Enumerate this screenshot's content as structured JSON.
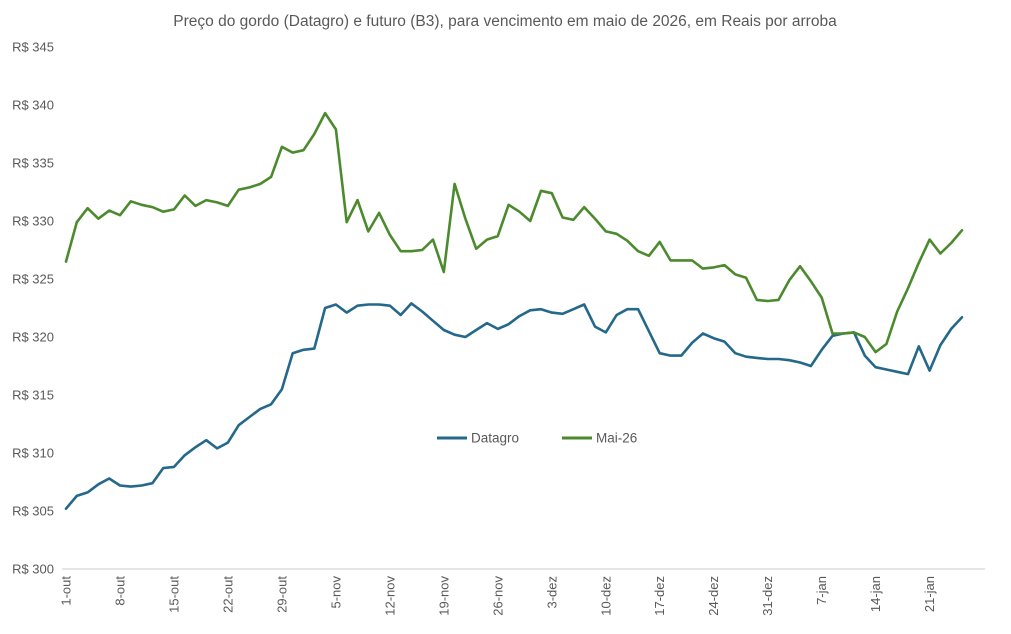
{
  "chart_data": {
    "type": "line",
    "title": "Preço do gordo (Datagro) e futuro (B3), para vencimento em maio de 2026, em Reais por arroba",
    "xlabel": "",
    "ylabel": "",
    "grid": false,
    "legend_position": "center-bottom",
    "text_color": "#595959",
    "axis_line_color": "#d6d6d6",
    "y_axis": {
      "min": 300,
      "max": 345,
      "step": 5,
      "prefix": "R$ "
    },
    "y_tick_labels": [
      "R$ 345",
      "R$ 340",
      "R$ 335",
      "R$ 330",
      "R$ 325",
      "R$ 320",
      "R$ 315",
      "R$ 310",
      "R$ 305",
      "R$ 300"
    ],
    "x_tick_labels": [
      "1-out",
      "8-out",
      "15-out",
      "22-out",
      "29-out",
      "5-nov",
      "12-nov",
      "19-nov",
      "26-nov",
      "3-dez",
      "10-dez",
      "17-dez",
      "24-dez",
      "31-dez",
      "7-jan",
      "14-jan",
      "21-jan"
    ],
    "x_tick_every": 5,
    "points_per_series": 84,
    "series": [
      {
        "name": "Datagro",
        "color": "#24688A",
        "values": [
          305.2,
          306.3,
          306.6,
          307.3,
          307.8,
          307.2,
          307.1,
          307.2,
          307.4,
          308.7,
          308.8,
          309.8,
          310.5,
          311.1,
          310.4,
          310.9,
          312.4,
          313.1,
          313.8,
          314.2,
          315.5,
          318.6,
          318.9,
          319.0,
          322.5,
          322.8,
          322.1,
          322.7,
          322.8,
          322.8,
          322.7,
          321.9,
          322.9,
          322.2,
          321.4,
          320.6,
          320.2,
          320.0,
          320.6,
          321.2,
          320.7,
          321.1,
          321.8,
          322.3,
          322.4,
          322.1,
          322.0,
          322.4,
          322.8,
          320.9,
          320.4,
          321.9,
          322.4,
          322.4,
          320.5,
          318.6,
          318.4,
          318.4,
          319.5,
          320.3,
          319.9,
          319.6,
          318.6,
          318.3,
          318.2,
          318.1,
          318.1,
          318.0,
          317.8,
          317.5,
          318.9,
          320.1,
          320.3,
          320.4,
          318.4,
          317.4,
          317.2,
          317.0,
          316.8,
          319.2,
          317.1,
          319.3,
          320.7,
          321.7
        ]
      },
      {
        "name": "Mai-26",
        "color": "#4C8A2E",
        "values": [
          326.5,
          329.9,
          331.1,
          330.2,
          330.9,
          330.5,
          331.7,
          331.4,
          331.2,
          330.8,
          331.0,
          332.2,
          331.3,
          331.8,
          331.6,
          331.3,
          332.7,
          332.9,
          333.2,
          333.8,
          336.4,
          335.9,
          336.1,
          337.5,
          339.3,
          337.9,
          329.9,
          331.8,
          329.1,
          330.7,
          328.8,
          327.4,
          327.4,
          327.5,
          328.4,
          325.6,
          333.2,
          330.2,
          327.6,
          328.4,
          328.7,
          331.4,
          330.8,
          330.0,
          332.6,
          332.4,
          330.3,
          330.1,
          331.2,
          330.2,
          329.1,
          328.9,
          328.3,
          327.4,
          327.0,
          328.2,
          326.6,
          326.6,
          326.6,
          325.9,
          326.0,
          326.2,
          325.4,
          325.1,
          323.2,
          323.1,
          323.2,
          324.9,
          326.1,
          324.8,
          323.4,
          320.3,
          320.3,
          320.4,
          320.0,
          318.7,
          319.4,
          322.2,
          324.2,
          326.4,
          328.4,
          327.2,
          328.1,
          329.2
        ]
      }
    ]
  }
}
